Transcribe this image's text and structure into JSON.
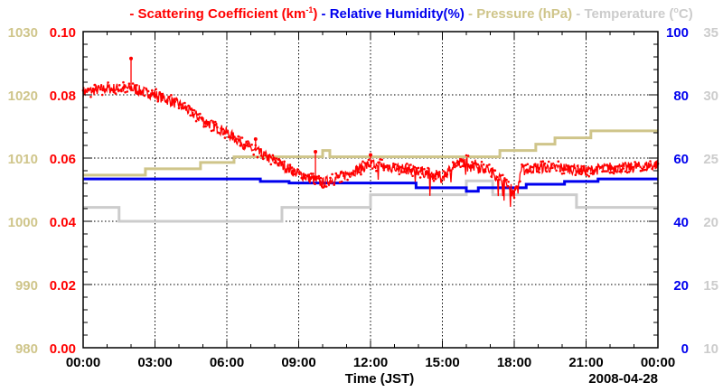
{
  "chart_data": {
    "type": "line",
    "legend": {
      "placement": "top",
      "entries": [
        {
          "prefix": "- ",
          "label": "Scattering Coefficient (km",
          "sup": "-1",
          "suffix": ")",
          "color": "#ff0000"
        },
        {
          "prefix": " - ",
          "label": "Relative Humidity(%)",
          "color": "#0000ee"
        },
        {
          "prefix": " - ",
          "label": "Pressure (hPa)",
          "color": "#cfc58a"
        },
        {
          "prefix": " - ",
          "label": "Temperature (",
          "sup": "o",
          "suffix": "C)",
          "color": "#cccccc"
        }
      ]
    },
    "xlabel": "Time (JST)",
    "date_label": "2008-04-28",
    "xlim_hours": [
      0,
      24
    ],
    "x_ticks": [
      "00:00",
      "03:00",
      "06:00",
      "09:00",
      "12:00",
      "15:00",
      "18:00",
      "21:00",
      "00:00"
    ],
    "axes": {
      "pressure": {
        "side": "left-outer",
        "ylim": [
          980,
          1030
        ],
        "ticks": [
          "980",
          "990",
          "1000",
          "1010",
          "1020",
          "1030"
        ],
        "color": "#cfc58a"
      },
      "scattering": {
        "side": "left-inner",
        "ylim": [
          0,
          0.1
        ],
        "ticks": [
          "0.00",
          "0.02",
          "0.04",
          "0.06",
          "0.08",
          "0.10"
        ],
        "color": "#ff0000"
      },
      "humidity": {
        "side": "right-inner",
        "ylim": [
          0,
          100
        ],
        "ticks": [
          "0",
          "20",
          "40",
          "60",
          "80",
          "100"
        ],
        "color": "#0000ee"
      },
      "temperature": {
        "side": "right-outer",
        "ylim": [
          10,
          35
        ],
        "ticks": [
          "10",
          "15",
          "20",
          "25",
          "30",
          "35"
        ],
        "color": "#cccccc"
      }
    },
    "grid": true,
    "series": [
      {
        "name": "Scattering Coefficient",
        "axis": "scattering",
        "style": "noisy-points",
        "x": [
          0,
          1,
          2,
          3,
          4,
          5,
          6,
          7,
          8,
          9,
          10,
          11,
          12,
          13,
          14,
          15,
          15.5,
          16,
          17,
          17.5,
          18,
          18.3,
          19,
          20,
          21,
          22,
          23,
          24
        ],
        "y": [
          0.081,
          0.082,
          0.082,
          0.08,
          0.077,
          0.072,
          0.068,
          0.063,
          0.059,
          0.055,
          0.052,
          0.055,
          0.058,
          0.057,
          0.056,
          0.054,
          0.058,
          0.059,
          0.056,
          0.053,
          0.049,
          0.056,
          0.057,
          0.057,
          0.056,
          0.057,
          0.057,
          0.058
        ],
        "spikes": [
          {
            "x": 2.0,
            "y": 0.0915
          },
          {
            "x": 7.2,
            "y": 0.066
          },
          {
            "x": 9.7,
            "y": 0.062
          },
          {
            "x": 12.0,
            "y": 0.061
          }
        ]
      },
      {
        "name": "Relative Humidity",
        "axis": "humidity",
        "style": "step",
        "x": [
          0,
          7.4,
          8.6,
          13.9,
          16.0,
          16.5,
          18.5,
          20.1,
          21.5,
          24
        ],
        "y": [
          53.4,
          52.6,
          52.1,
          50.6,
          49.5,
          50.6,
          51.7,
          52.6,
          53.4,
          53.4
        ]
      },
      {
        "name": "Pressure",
        "axis": "pressure",
        "style": "step",
        "x": [
          0,
          2.6,
          4.9,
          6.3,
          10.0,
          10.3,
          17.4,
          18.9,
          19.7,
          21.2,
          22.1,
          24
        ],
        "y": [
          1007.3,
          1008.3,
          1009.3,
          1010.2,
          1011.2,
          1010.2,
          1011.2,
          1012.2,
          1013.2,
          1014.3,
          1014.3,
          1014.3
        ]
      },
      {
        "name": "Temperature",
        "axis": "temperature",
        "style": "step",
        "x": [
          0,
          1.5,
          8.3,
          12.0,
          16.0,
          17.1,
          20.6,
          24
        ],
        "y": [
          21.1,
          20.0,
          21.1,
          22.1,
          23.2,
          22.1,
          21.1,
          21.1
        ]
      }
    ]
  }
}
